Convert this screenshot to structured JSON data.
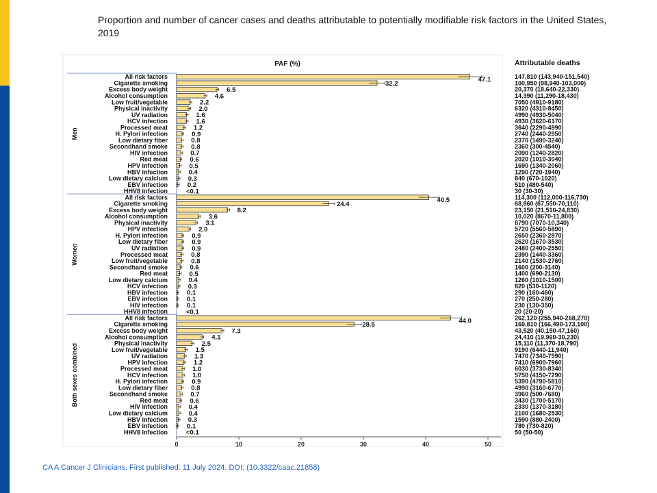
{
  "title": "Proportion and number of cancer cases and deaths attributable to potentially modifiable risk factors in the United States, 2019",
  "footer": "CA A Cancer J Clinicians, First published: 11 July 2024, DOI: (10.3322/caac.21858)",
  "colors": {
    "bar": "#f8df93",
    "bar_stroke": "#333333",
    "accent_yellow": "#f7c41f",
    "accent_blue": "#0a4a9e",
    "footer": "#1f5fbf"
  },
  "chart_data": {
    "type": "bar",
    "orientation": "horizontal",
    "title": "PAF (%)",
    "right_column_header": "Attributable deaths",
    "xlim": [
      0,
      50
    ],
    "xticks": [
      "0",
      "10",
      "20",
      "30",
      "40",
      "50"
    ],
    "grid": false,
    "groups": [
      {
        "name": "Men",
        "rows": [
          [
            "All risk factors",
            47.1,
            "47.1",
            "147,810 (143,940-151,540)"
          ],
          [
            "Cigarette smoking",
            32.2,
            "32.2",
            "100,950 (98,940-103,000)"
          ],
          [
            "Excess body weight",
            6.5,
            "6.5",
            "20,370 (18,640-22,330)"
          ],
          [
            "Alcohol consumption",
            4.6,
            "4.6",
            "14,390 (11,290-18,430)"
          ],
          [
            "Low fruit/vegetable",
            2.2,
            "2.2",
            "7050 (4910-9180)"
          ],
          [
            "Physical inactivity",
            2.0,
            "2.0",
            "6320 (4310-8450)"
          ],
          [
            "UV radiation",
            1.6,
            "1.6",
            "4990 (4930-5040)"
          ],
          [
            "HCV infection",
            1.6,
            "1.6",
            "4930 (3620-6170)"
          ],
          [
            "Processed meat",
            1.2,
            "1.2",
            "3640 (2290-4990)"
          ],
          [
            "H. Pylori infection",
            0.9,
            "0.9",
            "2740 (2440-2950)"
          ],
          [
            "Low dietary fiber",
            0.8,
            "0.8",
            "2370 (1490-3240)"
          ],
          [
            "Secondhand smoke",
            0.8,
            "0.8",
            "2360 (300-4540)"
          ],
          [
            "HIV infection",
            0.7,
            "0.7",
            "2090 (1240-2820)"
          ],
          [
            "Red meat",
            0.6,
            "0.6",
            "2020 (1010-3040)"
          ],
          [
            "HPV infection",
            0.5,
            "0.5",
            "1690 (1340-2060)"
          ],
          [
            "HBV infection",
            0.4,
            "0.4",
            "1290 (720-1940)"
          ],
          [
            "Low dietary calcium",
            0.3,
            "0.3",
            "840 (670-1020)"
          ],
          [
            "EBV infection",
            0.2,
            "0.2",
            "510 (480-540)"
          ],
          [
            "HHV8 infection",
            null,
            "<0.1",
            "30 (30-30)"
          ]
        ]
      },
      {
        "name": "Women",
        "rows": [
          [
            "All risk factors",
            40.5,
            "40.5",
            "114,300 (112,000-116,730)"
          ],
          [
            "Cigarette smoking",
            24.4,
            "24.4",
            "68,860 (67,550-70,110)"
          ],
          [
            "Excess body weight",
            8.2,
            "8.2",
            "23,150 (21,510-24,830)"
          ],
          [
            "Alcohol consumption",
            3.6,
            "3.6",
            "10,020 (8670-11,800)"
          ],
          [
            "Physical inactivity",
            3.1,
            "3.1",
            "8790 (7070-10,340)"
          ],
          [
            "HPV infection",
            2.0,
            "2.0",
            "5720 (5560-5890)"
          ],
          [
            "H. Pylori infection",
            0.9,
            "0.9",
            "2650 (2360-2870)"
          ],
          [
            "Low dietary fiber",
            0.9,
            "0.9",
            "2620 (1670-3530)"
          ],
          [
            "UV radiation",
            0.9,
            "0.9",
            "2480 (2400-2550)"
          ],
          [
            "Processed meat",
            0.8,
            "0.8",
            "2390 (1440-3360)"
          ],
          [
            "Low fruit/vegetable",
            0.8,
            "0.8",
            "2140 (1530-2760)"
          ],
          [
            "Secondhand smoke",
            0.6,
            "0.6",
            "1600 (200-3140)"
          ],
          [
            "Red meat",
            0.5,
            "0.5",
            "1400 (690-2130)"
          ],
          [
            "Low dietary calcium",
            0.4,
            "0.4",
            "1260 (1010-1500)"
          ],
          [
            "HCV infection",
            0.3,
            "0.3",
            "820 (530-1120)"
          ],
          [
            "HBV infection",
            0.1,
            "0.1",
            "290 (160-460)"
          ],
          [
            "EBV infection",
            0.1,
            "0.1",
            "270 (250-280)"
          ],
          [
            "HIV infection",
            0.1,
            "0.1",
            "230 (130-350)"
          ],
          [
            "HHV8 infection",
            null,
            "<0.1",
            "20 (20-20)"
          ]
        ]
      },
      {
        "name": "Both sexes combined",
        "rows": [
          [
            "All risk factors",
            44.0,
            "44.0",
            "262,120 (255,940-268,270)"
          ],
          [
            "Cigarette smoking",
            28.5,
            "28.5",
            "169,810 (166,490-173,100)"
          ],
          [
            "Excess body weight",
            7.3,
            "7.3",
            "43,520 (40,150-47,160)"
          ],
          [
            "Alcohol consumption",
            4.1,
            "4.1",
            "24,410 (19,960-30,230)"
          ],
          [
            "Physical inactivity",
            2.5,
            "2.5",
            "15,110 (11,370-18,790)"
          ],
          [
            "Low fruit/vegetable",
            1.5,
            "1.5",
            "9190 (6440-11,940)"
          ],
          [
            "UV radiation",
            1.3,
            "1.3",
            "7470 (7340-7590)"
          ],
          [
            "HPV infection",
            1.2,
            "1.2",
            "7410 (6900-7960)"
          ],
          [
            "Processed meat",
            1.0,
            "1.0",
            "6030 (3730-8340)"
          ],
          [
            "HCV infection",
            1.0,
            "1.0",
            "5750 (4150-7290)"
          ],
          [
            "H. Pylori infection",
            0.9,
            "0.9",
            "5390 (4790-5810)"
          ],
          [
            "Low dietary fiber",
            0.8,
            "0.8",
            "4990 (3160-6770)"
          ],
          [
            "Secondhand smoke",
            0.7,
            "0.7",
            "3960 (500-7680)"
          ],
          [
            "Red meat",
            0.6,
            "0.6",
            "3430 (1700-5170)"
          ],
          [
            "HIV infection",
            0.4,
            "0.4",
            "2330 (1370-3180)"
          ],
          [
            "Low dietary calcium",
            0.4,
            "0.4",
            "2100 (1680-2530)"
          ],
          [
            "HBV infection",
            0.3,
            "0.3",
            "1590 (880-2400)"
          ],
          [
            "EBV infection",
            0.1,
            "0.1",
            "780 (730-820)"
          ],
          [
            "HHV8 infection",
            null,
            "<0.1",
            "50 (50-50)"
          ]
        ]
      }
    ]
  }
}
